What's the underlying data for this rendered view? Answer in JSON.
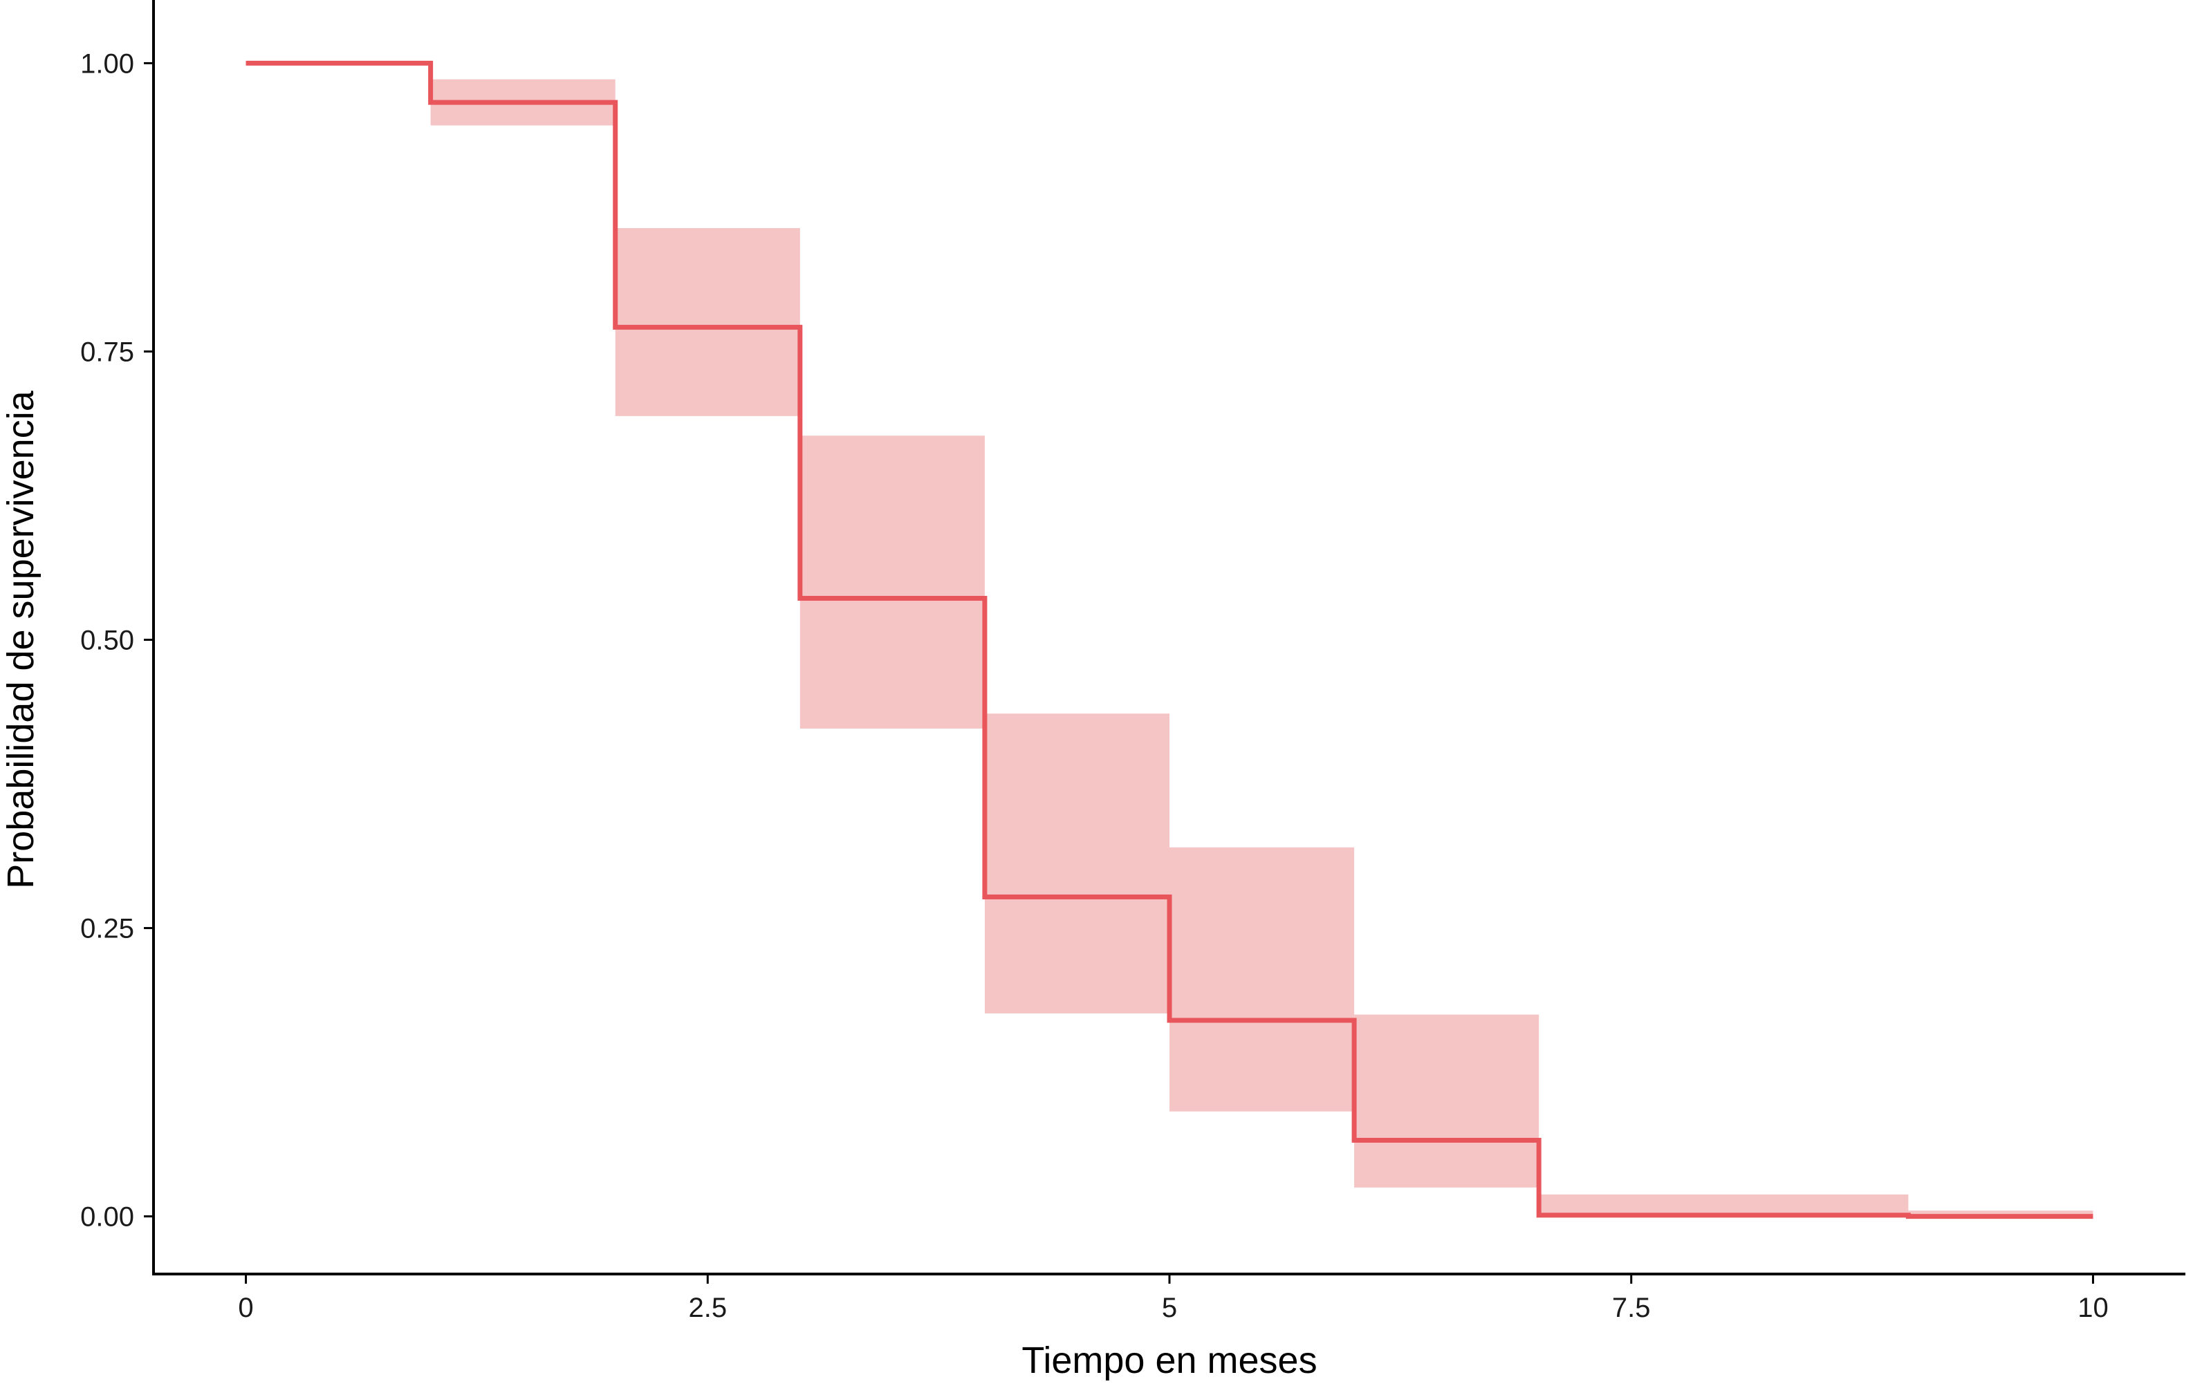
{
  "chart_data": {
    "type": "step",
    "xlabel": "Tiempo en meses",
    "ylabel": "Probabilidad de supervivencia",
    "xlim": [
      -0.5,
      10.5
    ],
    "ylim": [
      -0.05,
      1.05
    ],
    "x_ticks": [
      0,
      2.5,
      5,
      7.5,
      10
    ],
    "x_tick_labels": [
      "0",
      "2.5",
      "5",
      "7.5",
      "10"
    ],
    "y_ticks": [
      0,
      0.25,
      0.5,
      0.75,
      1.0
    ],
    "y_tick_labels": [
      "0.00",
      "0.25",
      "0.50",
      "0.75",
      "1.00"
    ],
    "grid": false,
    "legend": "none",
    "series": [
      {
        "color": "#e8555a",
        "band_color": "#f5c5c6",
        "steps": [
          {
            "x_start": 0,
            "x_end": 1,
            "surv": 1.0,
            "lower": 1.0,
            "upper": 1.0
          },
          {
            "x_start": 1,
            "x_end": 2,
            "surv": 0.966,
            "lower": 0.946,
            "upper": 0.986
          },
          {
            "x_start": 2,
            "x_end": 3,
            "surv": 0.771,
            "lower": 0.694,
            "upper": 0.857
          },
          {
            "x_start": 3,
            "x_end": 4,
            "surv": 0.536,
            "lower": 0.423,
            "upper": 0.677
          },
          {
            "x_start": 4,
            "x_end": 5,
            "surv": 0.277,
            "lower": 0.176,
            "upper": 0.436
          },
          {
            "x_start": 5,
            "x_end": 6,
            "surv": 0.17,
            "lower": 0.091,
            "upper": 0.32
          },
          {
            "x_start": 6,
            "x_end": 7,
            "surv": 0.066,
            "lower": 0.025,
            "upper": 0.175
          },
          {
            "x_start": 7,
            "x_end": 9,
            "surv": 0.001,
            "lower": 0.0,
            "upper": 0.019
          },
          {
            "x_start": 9,
            "x_end": 10,
            "surv": 0.0,
            "lower": 0.0,
            "upper": 0.005
          }
        ]
      }
    ]
  }
}
